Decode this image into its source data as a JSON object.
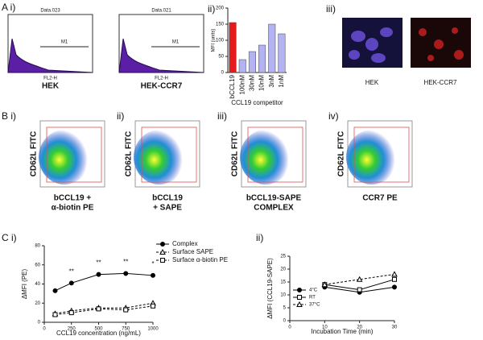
{
  "labels": {
    "a": "A i)",
    "a_ii": "ii)",
    "a_iii": "iii)",
    "b": "B i)",
    "b_ii": "ii)",
    "b_iii": "iii)",
    "b_iv": "iv)",
    "c": "C i)",
    "c_ii": "ii)"
  },
  "histograms": [
    {
      "title": "Data.023",
      "gate": "M1",
      "xlabel": "FL2-H",
      "caption": "HEK"
    },
    {
      "title": "Data.021",
      "gate": "M1",
      "xlabel": "FL2-H",
      "caption": "HEK-CCR7"
    }
  ],
  "images": [
    {
      "caption": "HEK"
    },
    {
      "caption": "HEK-CCR7"
    }
  ],
  "flow": [
    {
      "ylabel": "CD62L FITC",
      "caption": [
        "bCCL19 +",
        "α-biotin PE"
      ]
    },
    {
      "ylabel": "CD62L FITC",
      "caption": [
        "bCCL19",
        "+ SAPE"
      ]
    },
    {
      "ylabel": "CD62L FITC",
      "caption": [
        "bCCL19-SAPE",
        "COMPLEX"
      ]
    },
    {
      "ylabel": "CD62L FITC",
      "caption": [
        "CCR7 PE"
      ]
    }
  ],
  "chart_data": [
    {
      "type": "bar",
      "ylabel": "MFI (units)",
      "xlabel": "CCL19 competitor",
      "categories": [
        "bCCL19",
        "100nM",
        "30nM",
        "10nM",
        "3nM",
        "1nM"
      ],
      "values": [
        155,
        40,
        65,
        85,
        150,
        120
      ],
      "colors": [
        "#e41a1c",
        "#b3b3f2",
        "#b3b3f2",
        "#b3b3f2",
        "#b3b3f2",
        "#b3b3f2"
      ],
      "ylim": [
        0,
        200
      ],
      "yticks": [
        0,
        50,
        100,
        150,
        200
      ]
    },
    {
      "type": "line",
      "ylabel": "ΔMFI (PE)",
      "xlabel": "CCL19 concentration (ng/mL)",
      "xlim": [
        0,
        1000
      ],
      "xticks": [
        0,
        250,
        500,
        750,
        1000
      ],
      "ylim": [
        0,
        80
      ],
      "yticks": [
        0,
        20,
        40,
        60,
        80
      ],
      "legend": "top-right",
      "series": [
        {
          "name": "Complex",
          "marker": "circle",
          "dash": false,
          "color": "#000000",
          "x": [
            100,
            250,
            500,
            750,
            1000
          ],
          "values": [
            33,
            41,
            50,
            51,
            49
          ]
        },
        {
          "name": "Surface SAPE",
          "marker": "triangle",
          "dash": true,
          "color": "#000000",
          "x": [
            100,
            250,
            500,
            750,
            1000
          ],
          "values": [
            9,
            12,
            15,
            15,
            20
          ]
        },
        {
          "name": "Surface α-biotin PE",
          "marker": "square",
          "dash": true,
          "color": "#000000",
          "x": [
            100,
            250,
            500,
            750,
            1000
          ],
          "values": [
            8,
            10,
            14,
            13,
            17
          ]
        }
      ],
      "annotations": [
        {
          "text": "**",
          "x": 250
        },
        {
          "text": "**",
          "x": 500
        },
        {
          "text": "**",
          "x": 750
        },
        {
          "text": "*",
          "x": 1000
        }
      ]
    },
    {
      "type": "line",
      "ylabel": "ΔMFI (CCL19-SAPE)",
      "xlabel": "Incubation Time (min)",
      "xlim": [
        0,
        30
      ],
      "xticks": [
        0,
        10,
        20,
        30
      ],
      "ylim": [
        0,
        25
      ],
      "yticks": [
        0,
        5,
        10,
        15,
        20,
        25
      ],
      "legend": "middle-left",
      "series": [
        {
          "name": "4°C",
          "marker": "circle",
          "dash": false,
          "color": "#000000",
          "x": [
            10,
            20,
            30
          ],
          "values": [
            13,
            11,
            13
          ]
        },
        {
          "name": "RT",
          "marker": "square",
          "dash": false,
          "color": "#000000",
          "x": [
            10,
            20,
            30
          ],
          "values": [
            14,
            12,
            16
          ]
        },
        {
          "name": "37°C",
          "marker": "triangle",
          "dash": true,
          "color": "#000000",
          "x": [
            10,
            20,
            30
          ],
          "values": [
            14,
            16,
            18
          ]
        }
      ]
    }
  ]
}
